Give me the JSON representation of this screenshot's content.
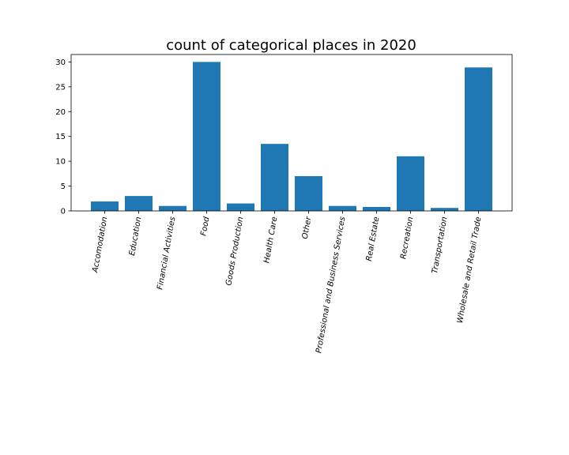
{
  "chart_data": {
    "type": "bar",
    "title": "count of categorical places in 2020",
    "xlabel": "",
    "ylabel": "",
    "categories": [
      "Accomodation",
      "Education",
      "Financial Activities",
      "Food",
      "Goods Production",
      "Health Care",
      "Other",
      "Professional and Business Services",
      "Real Estate",
      "Recreation",
      "Transportation",
      "Wholesale and Retail Trade"
    ],
    "values": [
      1.9,
      3.0,
      1.0,
      30.0,
      1.5,
      13.5,
      7.0,
      1.0,
      0.8,
      11.0,
      0.6,
      28.9
    ],
    "ylim": [
      0,
      31.5
    ],
    "yticks": [
      0,
      5,
      10,
      15,
      20,
      25,
      30
    ],
    "grid": false,
    "bar_color": "#1f77b4"
  }
}
